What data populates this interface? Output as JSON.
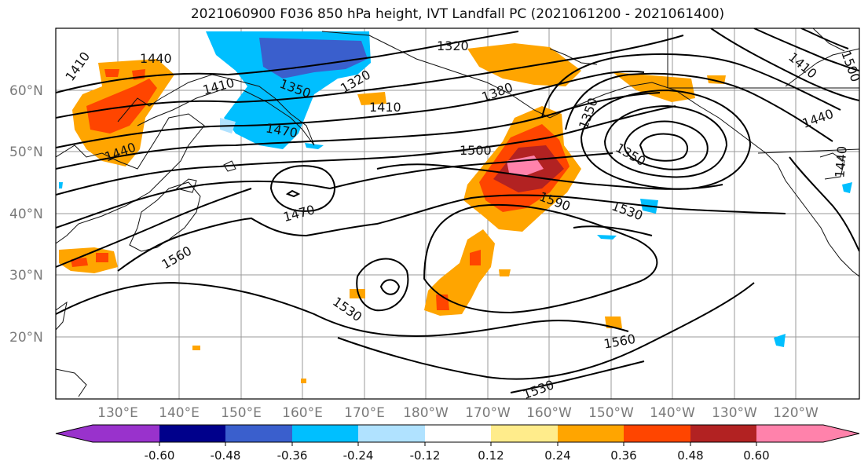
{
  "title": "2021060900 F036 850 hPa height, IVT Landfall PC (2021061200 - 2021061400)",
  "lat_labels": [
    "60°N",
    "50°N",
    "40°N",
    "30°N",
    "20°N"
  ],
  "lon_labels": [
    "130°E",
    "140°E",
    "150°E",
    "160°E",
    "170°E",
    "180°W",
    "170°W",
    "160°W",
    "150°W",
    "140°W",
    "130°W",
    "120°W"
  ],
  "contour_labels": [
    "1410",
    "1440",
    "1410",
    "1350",
    "1320",
    "1320",
    "1380",
    "1410",
    "1470",
    "1440",
    "1470",
    "1500",
    "1350",
    "1350",
    "1590",
    "1530",
    "1560",
    "1530",
    "1560",
    "1530",
    "1410",
    "1440",
    "1500",
    "1440"
  ],
  "colorbar": {
    "colors": [
      "#9932cc",
      "#00008b",
      "#3a5fcd",
      "#00bfff",
      "#b0e2ff",
      "#ffffff",
      "#ffec8b",
      "#ffa500",
      "#ff4500",
      "#b22222",
      "#ff82ab"
    ],
    "tick_labels": [
      "-0.60",
      "-0.48",
      "-0.36",
      "-0.24",
      "-0.12",
      "0.12",
      "0.24",
      "0.36",
      "0.48",
      "0.60"
    ]
  }
}
